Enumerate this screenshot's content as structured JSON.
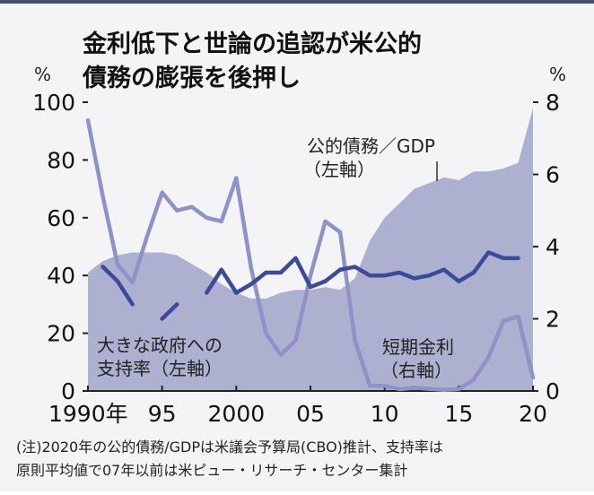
{
  "chart_data": {
    "type": "line",
    "title_lines": [
      "金利低下と世論の追認が米公的",
      "債務の膨張を後押し"
    ],
    "left_unit": "%",
    "right_unit": "%",
    "x_range": [
      1990,
      2020
    ],
    "y_left_range": [
      0,
      100
    ],
    "y_right_range": [
      0,
      8
    ],
    "left_ticks": [
      "100",
      "80",
      "60",
      "40",
      "20",
      "0"
    ],
    "right_ticks": [
      "8",
      "6",
      "4",
      "2",
      "0"
    ],
    "x_tick_labels": [
      {
        "year": 1990,
        "label": "1990年"
      },
      {
        "year": 1995,
        "label": "95"
      },
      {
        "year": 2000,
        "label": "2000"
      },
      {
        "year": 2005,
        "label": "05"
      },
      {
        "year": 2010,
        "label": "10"
      },
      {
        "year": 2015,
        "label": "15"
      },
      {
        "year": 2020,
        "label": "20"
      }
    ],
    "series": [
      {
        "name": "公的債務/GDP（左軸）",
        "axis": "left",
        "style": "area",
        "color": "#aeb0d0",
        "x": [
          1990,
          1991,
          1992,
          1993,
          1994,
          1995,
          1996,
          1997,
          1998,
          1999,
          2000,
          2001,
          2002,
          2003,
          2004,
          2005,
          2006,
          2007,
          2008,
          2009,
          2010,
          2011,
          2012,
          2013,
          2014,
          2015,
          2016,
          2017,
          2018,
          2019,
          2020
        ],
        "values": [
          41,
          45,
          47,
          48,
          48,
          48,
          47,
          44,
          41,
          37,
          34,
          32,
          32,
          34,
          35,
          35,
          36,
          35,
          39,
          52,
          60,
          65,
          70,
          72,
          74,
          73,
          76,
          76,
          77,
          79,
          98
        ]
      },
      {
        "name": "短期金利（右軸）",
        "axis": "right",
        "style": "line",
        "color": "#8e92c6",
        "x": [
          1990,
          1991,
          1992,
          1993,
          1994,
          1995,
          1996,
          1997,
          1998,
          1999,
          2000,
          2001,
          2002,
          2003,
          2004,
          2005,
          2006,
          2007,
          2008,
          2009,
          2010,
          2011,
          2012,
          2013,
          2014,
          2015,
          2016,
          2017,
          2018,
          2019,
          2020
        ],
        "values": [
          7.5,
          5.4,
          3.5,
          3.0,
          4.3,
          5.5,
          5.0,
          5.1,
          4.8,
          4.7,
          5.9,
          3.4,
          1.6,
          1.0,
          1.4,
          3.2,
          4.7,
          4.4,
          1.4,
          0.15,
          0.14,
          0.05,
          0.09,
          0.06,
          0.03,
          0.05,
          0.32,
          0.93,
          1.94,
          2.06,
          0.37
        ]
      },
      {
        "name": "大きな政府への支持率（左軸）",
        "axis": "left",
        "style": "line",
        "color": "#3b4a9a",
        "x": [
          1990,
          1991,
          1992,
          1993,
          1994,
          1995,
          1996,
          1997,
          1998,
          1999,
          2000,
          2001,
          2002,
          2003,
          2004,
          2005,
          2006,
          2007,
          2008,
          2009,
          2010,
          2011,
          2012,
          2013,
          2014,
          2015,
          2016,
          2017,
          2018,
          2019,
          2020
        ],
        "values": [
          null,
          43,
          38,
          30,
          null,
          25,
          30,
          null,
          34,
          42,
          34,
          37,
          41,
          41,
          46,
          36,
          38,
          42,
          43,
          40,
          40,
          41,
          39,
          40,
          42,
          38,
          41,
          48,
          46,
          46,
          null
        ]
      }
    ],
    "annotations": {
      "debt": [
        "公的債務／GDP",
        "（左軸）"
      ],
      "rate": [
        "短期金利",
        "（右軸）"
      ],
      "support": [
        "大きな政府への",
        "支持率（左軸）"
      ]
    },
    "note_lines": [
      "(注)2020年の公的債務/GDPは米議会予算局(CBO)推計、支持率は",
      "原則平均値で07年以前は米ピュー・リサーチ・センター集計"
    ]
  }
}
